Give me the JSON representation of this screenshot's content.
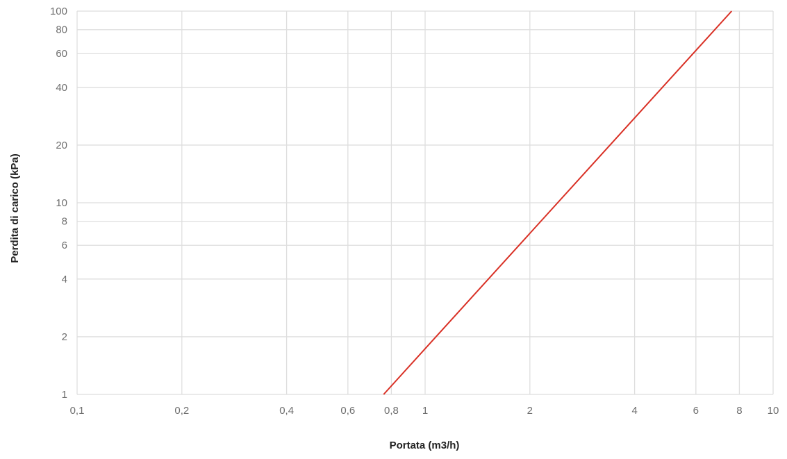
{
  "chart_data": {
    "type": "line",
    "title": "",
    "xlabel": "Portata (m3/h)",
    "ylabel": "Perdita di carico (kPa)",
    "x_scale": "log",
    "y_scale": "log",
    "xlim": [
      0.1,
      10
    ],
    "ylim": [
      1,
      100
    ],
    "x_ticks": [
      {
        "value": 0.1,
        "label": "0,1"
      },
      {
        "value": 0.2,
        "label": "0,2"
      },
      {
        "value": 0.4,
        "label": "0,4"
      },
      {
        "value": 0.6,
        "label": "0,6"
      },
      {
        "value": 0.8,
        "label": "0,8"
      },
      {
        "value": 1,
        "label": "1"
      },
      {
        "value": 2,
        "label": "2"
      },
      {
        "value": 4,
        "label": "4"
      },
      {
        "value": 6,
        "label": "6"
      },
      {
        "value": 8,
        "label": "8"
      },
      {
        "value": 10,
        "label": "10"
      }
    ],
    "y_ticks": [
      {
        "value": 1,
        "label": "1"
      },
      {
        "value": 2,
        "label": "2"
      },
      {
        "value": 4,
        "label": "4"
      },
      {
        "value": 6,
        "label": "6"
      },
      {
        "value": 8,
        "label": "8"
      },
      {
        "value": 10,
        "label": "10"
      },
      {
        "value": 20,
        "label": "20"
      },
      {
        "value": 40,
        "label": "40"
      },
      {
        "value": 60,
        "label": "60"
      },
      {
        "value": 80,
        "label": "80"
      },
      {
        "value": 100,
        "label": "100"
      }
    ],
    "grid": true,
    "legend": "none",
    "series": [
      {
        "color": "#d93025",
        "x": [
          0.76,
          7.6
        ],
        "y": [
          1,
          100
        ]
      }
    ]
  }
}
